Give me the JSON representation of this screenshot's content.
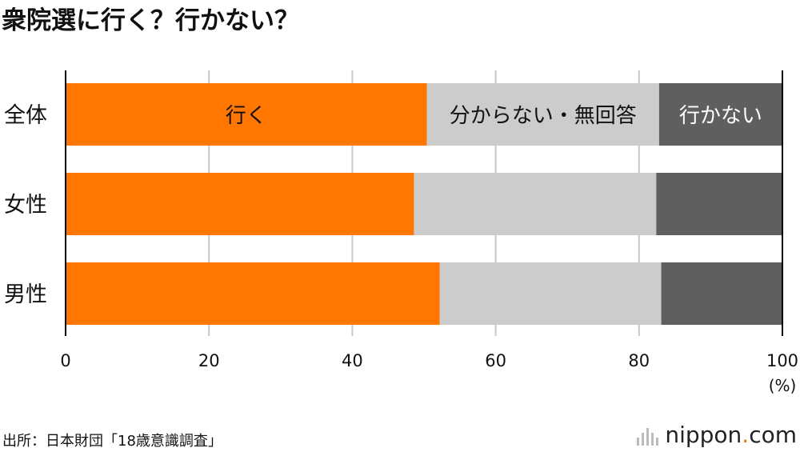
{
  "title": "衆院選に行く？行かない？",
  "source": "出所：日本財団「18歳意識調査」",
  "brand": {
    "name": "nippon",
    "dot": ".",
    "tld": "com"
  },
  "colors": {
    "go": "#FF7700",
    "unknown": "#CCCCCC",
    "not_go": "#5F5F5F",
    "grid": "#C8C8C8",
    "axis": "#000000"
  },
  "chart_data": {
    "type": "bar",
    "orientation": "horizontal",
    "stacked": true,
    "categories": [
      "全体",
      "女性",
      "男性"
    ],
    "series": [
      {
        "name": "行く",
        "values": [
          50.4,
          48.6,
          52.2
        ]
      },
      {
        "name": "分からない・無回答",
        "values": [
          32.4,
          33.8,
          30.9
        ]
      },
      {
        "name": "行かない",
        "values": [
          17.2,
          17.6,
          16.9
        ]
      }
    ],
    "xlim": [
      0,
      100
    ],
    "xticks": [
      0,
      20,
      40,
      60,
      80,
      100
    ],
    "xunit": "(%)",
    "grid": true,
    "legend": "inline labels on first bar"
  }
}
